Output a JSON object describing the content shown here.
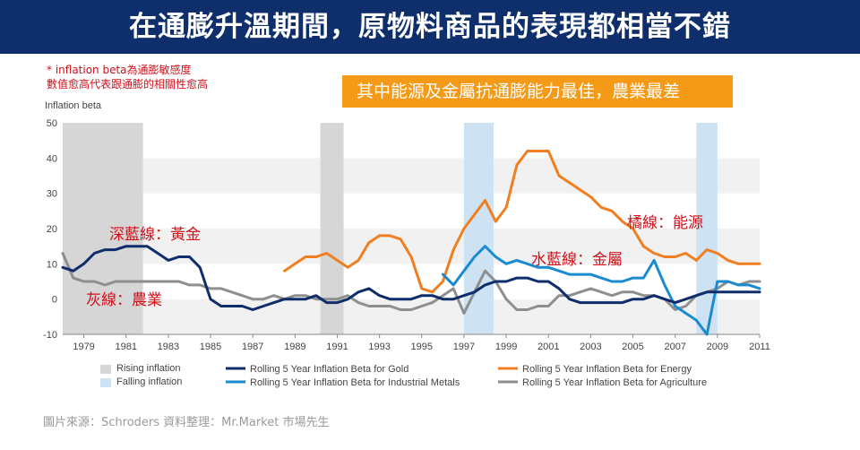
{
  "banner": {
    "title": "在通膨升溫期間，原物料商品的表現都相當不錯"
  },
  "note": {
    "line1": "* inflation  beta為通膨敏感度",
    "line2": "數值愈高代表跟通膨的相關性愈高"
  },
  "callout": {
    "text": "其中能源及金屬抗通膨能力最佳，農業最差"
  },
  "annotations": {
    "gold": "深藍線：黃金",
    "agriculture": "灰線：農業",
    "metals": "水藍線：金屬",
    "energy": "橘線：能源"
  },
  "source": {
    "text": "圖片來源：Schroders      資料整理：Mr.Market 市場先生"
  },
  "colors": {
    "banner": "#0e2f6b",
    "gold": "#0f2d6b",
    "metals": "#1a8bd0",
    "energy": "#f07f22",
    "agriculture": "#8e8e8e",
    "rising": "#d6d6d6",
    "falling": "#cde2f3",
    "annotation": "#d0101a",
    "callout": "#f59a16"
  },
  "chart_data": {
    "type": "line",
    "ylabel": "Inflation beta",
    "xlim": [
      1978,
      2011
    ],
    "ylim": [
      -10,
      50
    ],
    "x_ticks": [
      1979,
      1981,
      1983,
      1985,
      1987,
      1989,
      1991,
      1993,
      1995,
      1997,
      1999,
      2001,
      2003,
      2005,
      2007,
      2009,
      2011
    ],
    "y_ticks": [
      -10,
      0,
      10,
      20,
      30,
      40,
      50
    ],
    "grid": "horizontal bands",
    "legend": "bottom",
    "rising_inflation_periods": [
      [
        1978.0,
        1981.8
      ],
      [
        1990.2,
        1991.3
      ]
    ],
    "falling_inflation_periods": [
      [
        1997.0,
        1998.4
      ],
      [
        2008.0,
        2009.0
      ]
    ],
    "series": [
      {
        "name": "Rolling 5 Year Inflation Beta for Gold",
        "color": "#0f2d6b",
        "x": [
          1978.0,
          1978.5,
          1979.0,
          1979.5,
          1980.0,
          1980.5,
          1981.0,
          1981.5,
          1982.0,
          1982.5,
          1983.0,
          1983.5,
          1984.0,
          1984.5,
          1985.0,
          1985.5,
          1986.0,
          1986.5,
          1987.0,
          1987.5,
          1988.0,
          1988.5,
          1989.0,
          1989.5,
          1990.0,
          1990.5,
          1991.0,
          1991.5,
          1992.0,
          1992.5,
          1993.0,
          1993.5,
          1994.0,
          1994.5,
          1995.0,
          1995.5,
          1996.0,
          1996.5,
          1997.0,
          1997.5,
          1998.0,
          1998.5,
          1999.0,
          1999.5,
          2000.0,
          2000.5,
          2001.0,
          2001.5,
          2002.0,
          2002.5,
          2003.0,
          2003.5,
          2004.0,
          2004.5,
          2005.0,
          2005.5,
          2006.0,
          2006.5,
          2007.0,
          2007.5,
          2008.0,
          2008.5,
          2009.0,
          2009.5,
          2010.0,
          2010.5,
          2011.0
        ],
        "values": [
          9,
          8,
          10,
          13,
          14,
          14,
          15,
          15,
          15,
          13,
          11,
          12,
          12,
          9,
          0,
          -2,
          -2,
          -2,
          -3,
          -2,
          -1,
          0,
          0,
          0,
          1,
          -1,
          -1,
          0,
          2,
          3,
          1,
          0,
          0,
          0,
          1,
          1,
          0,
          0,
          1,
          2,
          4,
          5,
          5,
          6,
          6,
          5,
          5,
          3,
          0,
          -1,
          -1,
          -1,
          -1,
          -1,
          0,
          0,
          1,
          0,
          -1,
          0,
          1,
          2,
          2,
          2,
          2,
          2,
          2
        ]
      },
      {
        "name": "Rolling 5 Year Inflation Beta for Industrial Metals",
        "color": "#1a8bd0",
        "x": [
          1996.0,
          1996.5,
          1997.0,
          1997.5,
          1998.0,
          1998.5,
          1999.0,
          1999.5,
          2000.0,
          2000.5,
          2001.0,
          2001.5,
          2002.0,
          2002.5,
          2003.0,
          2003.5,
          2004.0,
          2004.5,
          2005.0,
          2005.5,
          2006.0,
          2006.5,
          2007.0,
          2007.5,
          2008.0,
          2008.5,
          2009.0,
          2009.5,
          2010.0,
          2010.5,
          2011.0
        ],
        "values": [
          7,
          4,
          8,
          12,
          15,
          12,
          10,
          11,
          10,
          9,
          9,
          8,
          7,
          7,
          7,
          6,
          5,
          5,
          6,
          6,
          11,
          4,
          -2,
          -4,
          -6,
          -10,
          5,
          5,
          4,
          4,
          3
        ]
      },
      {
        "name": "Rolling 5 Year Inflation Beta for Energy",
        "color": "#f07f22",
        "x": [
          1988.5,
          1989.0,
          1989.5,
          1990.0,
          1990.5,
          1991.0,
          1991.5,
          1992.0,
          1992.5,
          1993.0,
          1993.5,
          1994.0,
          1994.5,
          1995.0,
          1995.5,
          1996.0,
          1996.5,
          1997.0,
          1997.5,
          1998.0,
          1998.5,
          1999.0,
          1999.5,
          2000.0,
          2000.5,
          2001.0,
          2001.5,
          2002.0,
          2002.5,
          2003.0,
          2003.5,
          2004.0,
          2004.5,
          2005.0,
          2005.5,
          2006.0,
          2006.5,
          2007.0,
          2007.5,
          2008.0,
          2008.5,
          2009.0,
          2009.5,
          2010.0,
          2010.5,
          2011.0
        ],
        "values": [
          8,
          10,
          12,
          12,
          13,
          11,
          9,
          11,
          16,
          18,
          18,
          17,
          12,
          3,
          2,
          5,
          14,
          20,
          24,
          28,
          22,
          26,
          38,
          42,
          42,
          42,
          35,
          33,
          31,
          29,
          26,
          25,
          22,
          20,
          15,
          13,
          12,
          12,
          13,
          11,
          14,
          13,
          11,
          10,
          10,
          10
        ]
      },
      {
        "name": "Rolling 5 Year Inflation Beta for Agriculture",
        "color": "#8e8e8e",
        "x": [
          1978.0,
          1978.5,
          1979.0,
          1979.5,
          1980.0,
          1980.5,
          1981.0,
          1981.5,
          1982.0,
          1982.5,
          1983.0,
          1983.5,
          1984.0,
          1984.5,
          1985.0,
          1985.5,
          1986.0,
          1986.5,
          1987.0,
          1987.5,
          1988.0,
          1988.5,
          1989.0,
          1989.5,
          1990.0,
          1990.5,
          1991.0,
          1991.5,
          1992.0,
          1992.5,
          1993.0,
          1993.5,
          1994.0,
          1994.5,
          1995.0,
          1995.5,
          1996.0,
          1996.5,
          1997.0,
          1997.5,
          1998.0,
          1998.5,
          1999.0,
          1999.5,
          2000.0,
          2000.5,
          2001.0,
          2001.5,
          2002.0,
          2002.5,
          2003.0,
          2003.5,
          2004.0,
          2004.5,
          2005.0,
          2005.5,
          2006.0,
          2006.5,
          2007.0,
          2007.5,
          2008.0,
          2008.5,
          2009.0,
          2009.5,
          2010.0,
          2010.5,
          2011.0
        ],
        "values": [
          13,
          6,
          5,
          5,
          4,
          5,
          5,
          5,
          5,
          5,
          5,
          5,
          4,
          4,
          3,
          3,
          2,
          1,
          0,
          0,
          1,
          0,
          1,
          1,
          0,
          0,
          0,
          1,
          -1,
          -2,
          -2,
          -2,
          -3,
          -3,
          -2,
          -1,
          1,
          3,
          -4,
          2,
          8,
          5,
          0,
          -3,
          -3,
          -2,
          -2,
          1,
          1,
          2,
          3,
          2,
          1,
          2,
          2,
          1,
          1,
          0,
          -3,
          -2,
          1,
          2,
          3,
          5,
          4,
          5,
          5
        ]
      }
    ]
  }
}
